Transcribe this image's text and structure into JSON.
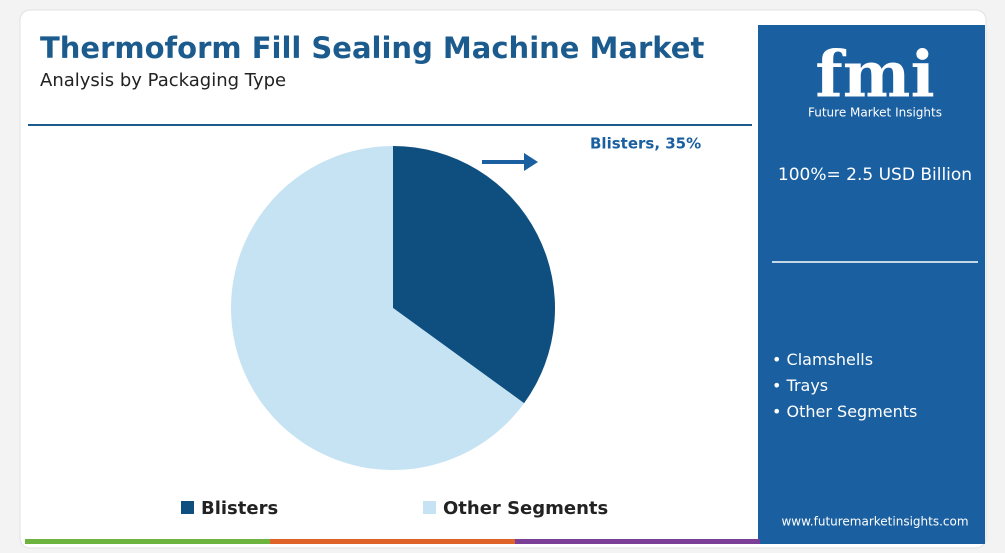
{
  "chart_data": {
    "type": "pie",
    "title": "Thermoform Fill Sealing Machine Market",
    "subtitle": "Analysis by Packaging Type",
    "categories": [
      "Blisters",
      "Other Segments"
    ],
    "values": [
      35,
      65
    ],
    "value_labels": [
      "Blisters, 35%",
      null
    ],
    "colors": [
      "#0e4f80",
      "#c6e3f4"
    ]
  },
  "logo": {
    "mark": "fmi",
    "name": "Future Market Insights"
  },
  "panel": {
    "total": "100%= 2.5 USD Billion",
    "segments": [
      "Clamshells",
      "Trays",
      "Other Segments"
    ],
    "url": "www.futuremarketinsights.com"
  }
}
